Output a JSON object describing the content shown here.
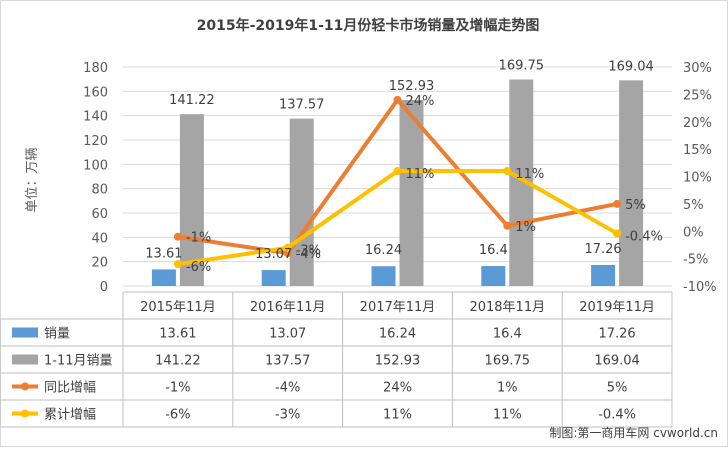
{
  "chart_data": {
    "type": "bar",
    "title": "2015年-2019年1-11月份轻卡市场销量及增幅走势图",
    "ylabel": "单位：万辆",
    "categories": [
      "2015年11月",
      "2016年11月",
      "2017年11月",
      "2018年11月",
      "2019年11月"
    ],
    "ylim": [
      0,
      180
    ],
    "y_ticks": [
      "0",
      "20",
      "40",
      "60",
      "80",
      "100",
      "120",
      "140",
      "160",
      "180"
    ],
    "y2lim": [
      -10,
      30
    ],
    "y2_ticks": [
      "-10%",
      "-5%",
      "0%",
      "5%",
      "10%",
      "15%",
      "20%",
      "25%",
      "30%"
    ],
    "grid": true,
    "legend_position": "table-bottom",
    "series": [
      {
        "name": "销量",
        "kind": "bar",
        "axis": "left",
        "color": "#5B9BD5",
        "values": [
          13.61,
          13.07,
          16.24,
          16.4,
          17.26
        ],
        "labels": [
          "13.61",
          "13.07",
          "16.24",
          "16.4",
          "17.26"
        ]
      },
      {
        "name": "1-11月销量",
        "kind": "bar",
        "axis": "left",
        "color": "#A5A5A5",
        "values": [
          141.22,
          137.57,
          152.93,
          169.75,
          169.04
        ],
        "labels": [
          "141.22",
          "137.57",
          "152.93",
          "169.75",
          "169.04"
        ]
      },
      {
        "name": "同比增幅",
        "kind": "line",
        "axis": "right",
        "color": "#ED7D31",
        "values": [
          -1,
          -4,
          24,
          1,
          5
        ],
        "labels": [
          "-1%",
          "-4%",
          "24%",
          "1%",
          "5%"
        ]
      },
      {
        "name": "累计增幅",
        "kind": "line",
        "axis": "right",
        "color": "#FFC000",
        "values": [
          -6,
          -3,
          11,
          11,
          -0.4
        ],
        "labels": [
          "-6%",
          "-3%",
          "11%",
          "11%",
          "-0.4%"
        ]
      }
    ],
    "footer": "制图:第一商用车网 cvworld.cn"
  }
}
